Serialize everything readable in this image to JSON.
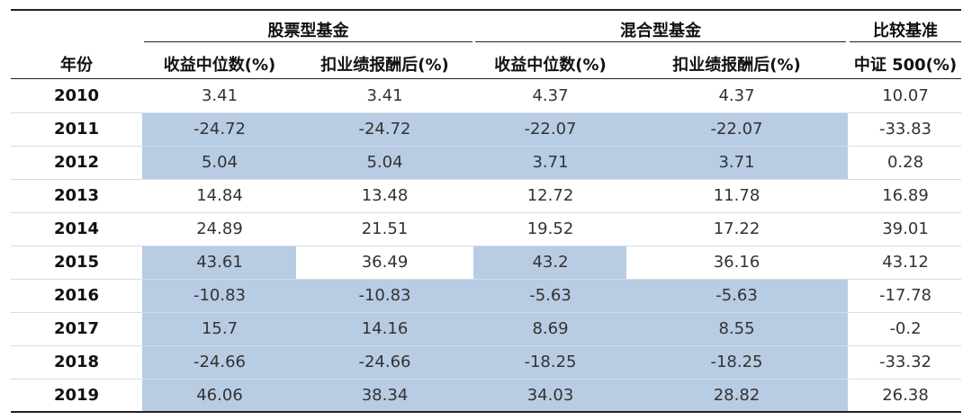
{
  "table": {
    "groups": {
      "stock": "股票型基金",
      "hybrid": "混合型基金",
      "benchmark": "比较基准"
    },
    "columns": {
      "year": "年份",
      "stock_median": "收益中位数(%)",
      "stock_after_fee": "扣业绩报酬后(%)",
      "hybrid_median": "收益中位数(%)",
      "hybrid_after_fee": "扣业绩报酬后(%)",
      "benchmark": "中证 500(%)"
    },
    "highlight_color": "#b8cce4",
    "rows": [
      {
        "year": "2010",
        "stock_median": "3.41",
        "stock_after_fee": "3.41",
        "hybrid_median": "4.37",
        "hybrid_after_fee": "4.37",
        "benchmark": "10.07"
      },
      {
        "year": "2011",
        "stock_median": "-24.72",
        "stock_after_fee": "-24.72",
        "hybrid_median": "-22.07",
        "hybrid_after_fee": "-22.07",
        "benchmark": "-33.83"
      },
      {
        "year": "2012",
        "stock_median": "5.04",
        "stock_after_fee": "5.04",
        "hybrid_median": "3.71",
        "hybrid_after_fee": "3.71",
        "benchmark": "0.28"
      },
      {
        "year": "2013",
        "stock_median": "14.84",
        "stock_after_fee": "13.48",
        "hybrid_median": "12.72",
        "hybrid_after_fee": "11.78",
        "benchmark": "16.89"
      },
      {
        "year": "2014",
        "stock_median": "24.89",
        "stock_after_fee": "21.51",
        "hybrid_median": "19.52",
        "hybrid_after_fee": "17.22",
        "benchmark": "39.01"
      },
      {
        "year": "2015",
        "stock_median": "43.61",
        "stock_after_fee": "36.49",
        "hybrid_median": "43.2",
        "hybrid_after_fee": "36.16",
        "benchmark": "43.12"
      },
      {
        "year": "2016",
        "stock_median": "-10.83",
        "stock_after_fee": "-10.83",
        "hybrid_median": "-5.63",
        "hybrid_after_fee": "-5.63",
        "benchmark": "-17.78"
      },
      {
        "year": "2017",
        "stock_median": "15.7",
        "stock_after_fee": "14.16",
        "hybrid_median": "8.69",
        "hybrid_after_fee": "8.55",
        "benchmark": "-0.2"
      },
      {
        "year": "2018",
        "stock_median": "-24.66",
        "stock_after_fee": "-24.66",
        "hybrid_median": "-18.25",
        "hybrid_after_fee": "-18.25",
        "benchmark": "-33.32"
      },
      {
        "year": "2019",
        "stock_median": "46.06",
        "stock_after_fee": "38.34",
        "hybrid_median": "34.03",
        "hybrid_after_fee": "28.82",
        "benchmark": "26.38"
      }
    ]
  }
}
